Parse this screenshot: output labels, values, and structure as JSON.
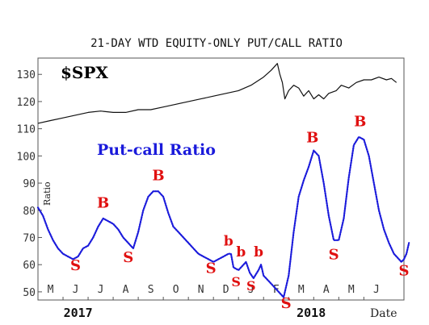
{
  "chart_data": {
    "type": "line",
    "title": "21-DAY WTD EQUITY-ONLY PUT/CALL RATIO",
    "spx_label": "$SPX",
    "series_label": "Put-call Ratio",
    "ylabel": "Ratio",
    "date_label": "Date",
    "ylim": [
      47,
      136
    ],
    "yticks": [
      50,
      60,
      70,
      80,
      90,
      100,
      110,
      120,
      130
    ],
    "xlim": [
      0,
      14.6
    ],
    "months": [
      {
        "label": "M",
        "x": 0.5
      },
      {
        "label": "J",
        "x": 1.5
      },
      {
        "label": "J",
        "x": 2.5
      },
      {
        "label": "A",
        "x": 3.5
      },
      {
        "label": "S",
        "x": 4.5
      },
      {
        "label": "O",
        "x": 5.5
      },
      {
        "label": "N",
        "x": 6.5
      },
      {
        "label": "D",
        "x": 7.5
      },
      {
        "label": "J",
        "x": 8.5
      },
      {
        "label": "F",
        "x": 9.5
      },
      {
        "label": "M",
        "x": 10.5
      },
      {
        "label": "A",
        "x": 11.5
      },
      {
        "label": "M",
        "x": 12.5
      },
      {
        "label": "J",
        "x": 13.5
      }
    ],
    "years": [
      {
        "label": "2017",
        "x": 1.6
      },
      {
        "label": "2018",
        "x": 10.9
      }
    ],
    "series": [
      {
        "name": "$SPX",
        "color": "#111111",
        "style": "solid",
        "points": [
          [
            0,
            112
          ],
          [
            0.5,
            113
          ],
          [
            1.0,
            114
          ],
          [
            1.5,
            115
          ],
          [
            2.0,
            116
          ],
          [
            2.5,
            116.5
          ],
          [
            3.0,
            116
          ],
          [
            3.5,
            116
          ],
          [
            4.0,
            117
          ],
          [
            4.5,
            117
          ],
          [
            5.0,
            118
          ],
          [
            5.5,
            119
          ],
          [
            6.0,
            120
          ],
          [
            6.5,
            121
          ],
          [
            7.0,
            122
          ],
          [
            7.5,
            123
          ],
          [
            8.0,
            124
          ],
          [
            8.5,
            126
          ],
          [
            9.0,
            129
          ],
          [
            9.3,
            131.5
          ],
          [
            9.55,
            134
          ],
          [
            9.65,
            130
          ],
          [
            9.75,
            127
          ],
          [
            9.85,
            121
          ],
          [
            10.0,
            124
          ],
          [
            10.2,
            126
          ],
          [
            10.4,
            125
          ],
          [
            10.6,
            122
          ],
          [
            10.8,
            124
          ],
          [
            11.0,
            121
          ],
          [
            11.2,
            122.5
          ],
          [
            11.4,
            121
          ],
          [
            11.6,
            123
          ],
          [
            11.9,
            124
          ],
          [
            12.1,
            126
          ],
          [
            12.4,
            125
          ],
          [
            12.7,
            127
          ],
          [
            13.0,
            128
          ],
          [
            13.3,
            128
          ],
          [
            13.6,
            129
          ],
          [
            13.9,
            128
          ],
          [
            14.1,
            128.5
          ],
          [
            14.3,
            127
          ]
        ]
      },
      {
        "name": "Put-call Ratio",
        "color": "#1a1adb",
        "style": "dotted",
        "points": [
          [
            0,
            81
          ],
          [
            0.2,
            78
          ],
          [
            0.4,
            73
          ],
          [
            0.6,
            69
          ],
          [
            0.8,
            66
          ],
          [
            1.0,
            64
          ],
          [
            1.2,
            63
          ],
          [
            1.4,
            62
          ],
          [
            1.6,
            63
          ],
          [
            1.8,
            66
          ],
          [
            2.0,
            67
          ],
          [
            2.2,
            70
          ],
          [
            2.4,
            74
          ],
          [
            2.6,
            77
          ],
          [
            2.8,
            76
          ],
          [
            3.0,
            75
          ],
          [
            3.2,
            73
          ],
          [
            3.4,
            70
          ],
          [
            3.6,
            68
          ],
          [
            3.8,
            66
          ],
          [
            4.0,
            72
          ],
          [
            4.2,
            80
          ],
          [
            4.4,
            85
          ],
          [
            4.6,
            87
          ],
          [
            4.8,
            87
          ],
          [
            5.0,
            85
          ],
          [
            5.2,
            79
          ],
          [
            5.4,
            74
          ],
          [
            5.6,
            72
          ],
          [
            5.8,
            70
          ],
          [
            6.0,
            68
          ],
          [
            6.2,
            66
          ],
          [
            6.4,
            64
          ],
          [
            6.6,
            63
          ],
          [
            6.8,
            62
          ],
          [
            7.0,
            61
          ],
          [
            7.2,
            62
          ],
          [
            7.4,
            63
          ],
          [
            7.6,
            64
          ],
          [
            7.7,
            64
          ],
          [
            7.8,
            59
          ],
          [
            8.0,
            58
          ],
          [
            8.2,
            60
          ],
          [
            8.3,
            61
          ],
          [
            8.45,
            57
          ],
          [
            8.6,
            55
          ],
          [
            8.8,
            58
          ],
          [
            8.9,
            60
          ],
          [
            9.0,
            56
          ],
          [
            9.2,
            54
          ],
          [
            9.4,
            52
          ],
          [
            9.6,
            50
          ],
          [
            9.8,
            48
          ],
          [
            10.0,
            56
          ],
          [
            10.2,
            72
          ],
          [
            10.4,
            85
          ],
          [
            10.6,
            91
          ],
          [
            10.8,
            96
          ],
          [
            11.0,
            102
          ],
          [
            11.2,
            100
          ],
          [
            11.4,
            90
          ],
          [
            11.6,
            78
          ],
          [
            11.8,
            69
          ],
          [
            12.0,
            69
          ],
          [
            12.2,
            77
          ],
          [
            12.4,
            92
          ],
          [
            12.6,
            104
          ],
          [
            12.8,
            107
          ],
          [
            13.0,
            106
          ],
          [
            13.2,
            100
          ],
          [
            13.4,
            90
          ],
          [
            13.6,
            80
          ],
          [
            13.8,
            73
          ],
          [
            14.0,
            68
          ],
          [
            14.2,
            64
          ],
          [
            14.4,
            62
          ],
          [
            14.5,
            61
          ],
          [
            14.6,
            62
          ],
          [
            14.7,
            64
          ],
          [
            14.8,
            68
          ]
        ]
      }
    ],
    "signals": [
      {
        "text": "S",
        "x": 1.5,
        "y": 58,
        "size": 18
      },
      {
        "text": "B",
        "x": 2.6,
        "y": 81,
        "size": 18
      },
      {
        "text": "S",
        "x": 3.6,
        "y": 61,
        "size": 18
      },
      {
        "text": "B",
        "x": 4.8,
        "y": 91,
        "size": 18
      },
      {
        "text": "S",
        "x": 6.9,
        "y": 57,
        "size": 18
      },
      {
        "text": "b",
        "x": 7.6,
        "y": 67,
        "size": 17
      },
      {
        "text": "b",
        "x": 8.1,
        "y": 63,
        "size": 17
      },
      {
        "text": "S",
        "x": 7.9,
        "y": 52,
        "size": 16
      },
      {
        "text": "S",
        "x": 8.5,
        "y": 50.5,
        "size": 16
      },
      {
        "text": "b",
        "x": 8.8,
        "y": 63,
        "size": 17
      },
      {
        "text": "S",
        "x": 9.9,
        "y": 44,
        "size": 18
      },
      {
        "text": "B",
        "x": 10.95,
        "y": 105,
        "size": 18
      },
      {
        "text": "S",
        "x": 11.8,
        "y": 62,
        "size": 18
      },
      {
        "text": "B",
        "x": 12.85,
        "y": 111,
        "size": 18
      },
      {
        "text": "S",
        "x": 14.6,
        "y": 56,
        "size": 18
      }
    ]
  }
}
